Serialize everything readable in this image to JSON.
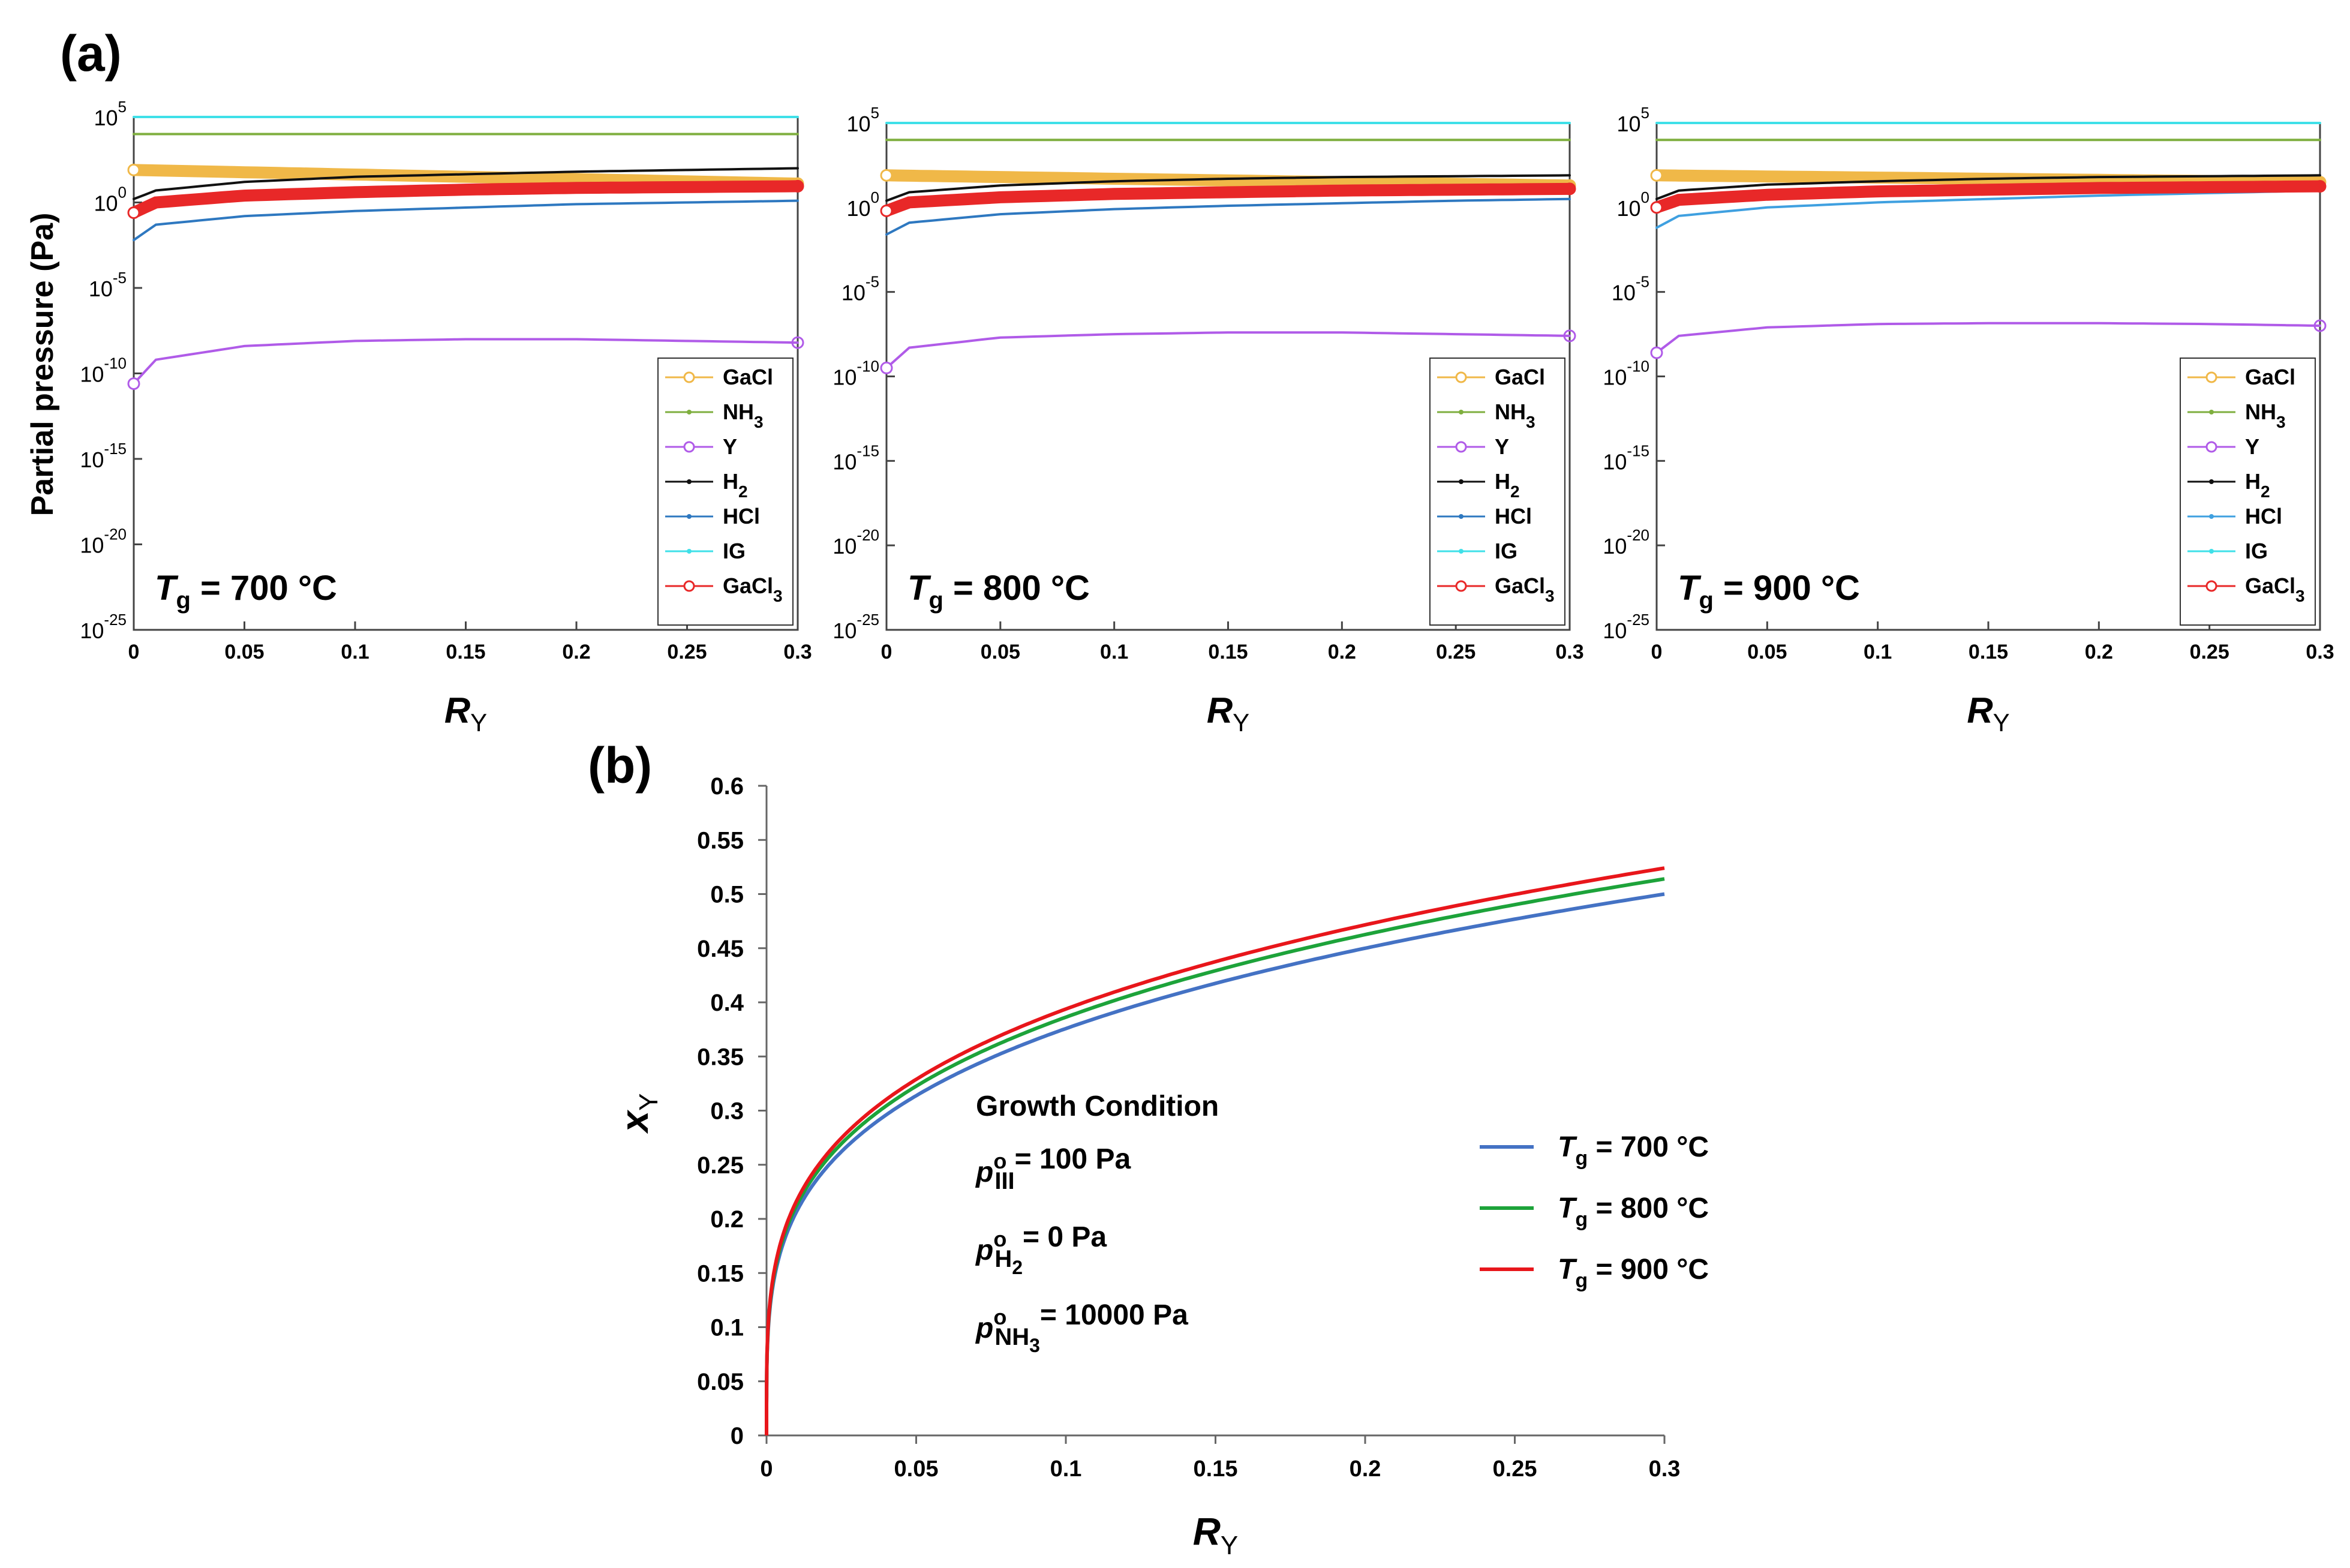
{
  "figure": {
    "panel_a_label": "(a)",
    "panel_b_label": "(b)"
  },
  "chart_data": [
    {
      "type": "line",
      "panel": "a-1",
      "title": "",
      "xlabel": "R_Y",
      "ylabel": "Partial pressure (Pa)",
      "xlim": [
        0,
        0.3
      ],
      "ylim_exp": [
        -25,
        5
      ],
      "yscale": "log",
      "x_ticks": [
        "0",
        "0.05",
        "0.1",
        "0.15",
        "0.2",
        "0.25",
        "0.3"
      ],
      "y_ticks": [
        [
          "10",
          "-25"
        ],
        [
          "10",
          "-20"
        ],
        [
          "10",
          "-15"
        ],
        [
          "10",
          "-10"
        ],
        [
          "10",
          "-5"
        ],
        [
          "10",
          "0"
        ],
        [
          "10",
          "5"
        ]
      ],
      "annotation": {
        "T": "T",
        "sub": "g",
        "value": " = 700 °C"
      },
      "legend_position": "bottom-right",
      "series": [
        {
          "name": "GaCl",
          "sub": "",
          "color": "#F0B848",
          "marker": "o",
          "thick": true,
          "x": [
            0,
            0.3
          ],
          "log10p": [
            1.9,
            1.1
          ]
        },
        {
          "name": "NH",
          "sub": "3",
          "color": "#7FAF3F",
          "marker": ".",
          "x": [
            0,
            0.3
          ],
          "log10p": [
            4.0,
            4.0
          ]
        },
        {
          "name": "Y",
          "sub": "",
          "color": "#B05BE8",
          "marker": "o",
          "x": [
            0,
            0.01,
            0.05,
            0.1,
            0.15,
            0.2,
            0.25,
            0.3
          ],
          "log10p": [
            -10.6,
            -9.2,
            -8.4,
            -8.1,
            -8.0,
            -8.0,
            -8.1,
            -8.2
          ]
        },
        {
          "name": "H",
          "sub": "2",
          "color": "#111111",
          "marker": ".",
          "x": [
            0,
            0.01,
            0.05,
            0.1,
            0.15,
            0.2,
            0.25,
            0.3
          ],
          "log10p": [
            0.2,
            0.7,
            1.2,
            1.5,
            1.65,
            1.8,
            1.9,
            2.0
          ]
        },
        {
          "name": "HCl",
          "sub": "",
          "color": "#2E78C0",
          "marker": ".",
          "x": [
            0,
            0.01,
            0.05,
            0.1,
            0.15,
            0.2,
            0.25,
            0.3
          ],
          "log10p": [
            -2.2,
            -1.3,
            -0.8,
            -0.5,
            -0.3,
            -0.1,
            0.0,
            0.1
          ]
        },
        {
          "name": "IG",
          "sub": "",
          "color": "#3FE0E8",
          "marker": ".",
          "x": [
            0,
            0.3
          ],
          "log10p": [
            5.0,
            5.0
          ]
        },
        {
          "name": "GaCl",
          "sub": "3",
          "color": "#E82828",
          "marker": "o",
          "thick": true,
          "x": [
            0,
            0.01,
            0.05,
            0.1,
            0.15,
            0.2,
            0.25,
            0.3
          ],
          "log10p": [
            -0.6,
            0.0,
            0.4,
            0.6,
            0.75,
            0.85,
            0.9,
            0.95
          ]
        }
      ]
    },
    {
      "type": "line",
      "panel": "a-2",
      "title": "",
      "xlabel": "R_Y",
      "ylabel": "",
      "xlim": [
        0,
        0.3
      ],
      "ylim_exp": [
        -25,
        5
      ],
      "yscale": "log",
      "x_ticks": [
        "0",
        "0.05",
        "0.1",
        "0.15",
        "0.2",
        "0.25",
        "0.3"
      ],
      "y_ticks": [
        [
          "10",
          "-25"
        ],
        [
          "10",
          "-20"
        ],
        [
          "10",
          "-15"
        ],
        [
          "10",
          "-10"
        ],
        [
          "10",
          "-5"
        ],
        [
          "10",
          "0"
        ],
        [
          "10",
          "5"
        ]
      ],
      "annotation": {
        "T": "T",
        "sub": "g",
        "value": " = 800 °C"
      },
      "legend_position": "bottom-right",
      "series": [
        {
          "name": "GaCl",
          "sub": "",
          "color": "#F0B848",
          "marker": "o",
          "thick": true,
          "x": [
            0,
            0.3
          ],
          "log10p": [
            1.9,
            1.3
          ]
        },
        {
          "name": "NH",
          "sub": "3",
          "color": "#7FAF3F",
          "marker": ".",
          "x": [
            0,
            0.3
          ],
          "log10p": [
            4.0,
            4.0
          ]
        },
        {
          "name": "Y",
          "sub": "",
          "color": "#B05BE8",
          "marker": "o",
          "x": [
            0,
            0.01,
            0.05,
            0.1,
            0.15,
            0.2,
            0.25,
            0.3
          ],
          "log10p": [
            -9.5,
            -8.3,
            -7.7,
            -7.5,
            -7.4,
            -7.4,
            -7.5,
            -7.6
          ]
        },
        {
          "name": "H",
          "sub": "2",
          "color": "#111111",
          "marker": ".",
          "x": [
            0,
            0.01,
            0.05,
            0.1,
            0.15,
            0.2,
            0.25,
            0.3
          ],
          "log10p": [
            0.4,
            0.9,
            1.3,
            1.55,
            1.7,
            1.8,
            1.85,
            1.9
          ]
        },
        {
          "name": "HCl",
          "sub": "",
          "color": "#2E78C0",
          "marker": ".",
          "x": [
            0,
            0.01,
            0.05,
            0.1,
            0.15,
            0.2,
            0.25,
            0.3
          ],
          "log10p": [
            -1.6,
            -0.9,
            -0.4,
            -0.1,
            0.1,
            0.25,
            0.4,
            0.5
          ]
        },
        {
          "name": "IG",
          "sub": "",
          "color": "#3FE0E8",
          "marker": ".",
          "x": [
            0,
            0.3
          ],
          "log10p": [
            5.0,
            5.0
          ]
        },
        {
          "name": "GaCl",
          "sub": "3",
          "color": "#E82828",
          "marker": "o",
          "thick": true,
          "x": [
            0,
            0.01,
            0.05,
            0.1,
            0.15,
            0.2,
            0.25,
            0.3
          ],
          "log10p": [
            -0.2,
            0.3,
            0.6,
            0.8,
            0.9,
            1.0,
            1.05,
            1.1
          ]
        }
      ]
    },
    {
      "type": "line",
      "panel": "a-3",
      "title": "",
      "xlabel": "R_Y",
      "ylabel": "",
      "xlim": [
        0,
        0.3
      ],
      "ylim_exp": [
        -25,
        5
      ],
      "yscale": "log",
      "x_ticks": [
        "0",
        "0.05",
        "0.1",
        "0.15",
        "0.2",
        "0.25",
        "0.3"
      ],
      "y_ticks": [
        [
          "10",
          "-25"
        ],
        [
          "10",
          "-20"
        ],
        [
          "10",
          "-15"
        ],
        [
          "10",
          "-10"
        ],
        [
          "10",
          "-5"
        ],
        [
          "10",
          "0"
        ],
        [
          "10",
          "5"
        ]
      ],
      "annotation": {
        "T": "T",
        "sub": "g",
        "value": " = 900 °C"
      },
      "legend_position": "bottom-right",
      "series": [
        {
          "name": "GaCl",
          "sub": "",
          "color": "#F0B848",
          "marker": "o",
          "thick": true,
          "x": [
            0,
            0.3
          ],
          "log10p": [
            1.9,
            1.5
          ]
        },
        {
          "name": "NH",
          "sub": "3",
          "color": "#7FAF3F",
          "marker": ".",
          "x": [
            0,
            0.3
          ],
          "log10p": [
            4.0,
            4.0
          ]
        },
        {
          "name": "Y",
          "sub": "",
          "color": "#B05BE8",
          "marker": "o",
          "x": [
            0,
            0.01,
            0.05,
            0.1,
            0.15,
            0.2,
            0.25,
            0.3
          ],
          "log10p": [
            -8.6,
            -7.6,
            -7.1,
            -6.9,
            -6.85,
            -6.85,
            -6.9,
            -7.0
          ]
        },
        {
          "name": "H",
          "sub": "2",
          "color": "#111111",
          "marker": ".",
          "x": [
            0,
            0.01,
            0.05,
            0.1,
            0.15,
            0.2,
            0.25,
            0.3
          ],
          "log10p": [
            0.5,
            1.0,
            1.35,
            1.55,
            1.7,
            1.8,
            1.85,
            1.9
          ]
        },
        {
          "name": "HCl",
          "sub": "",
          "color": "#3FA0E0",
          "marker": ".",
          "x": [
            0,
            0.01,
            0.05,
            0.1,
            0.15,
            0.2,
            0.25,
            0.3
          ],
          "log10p": [
            -1.2,
            -0.5,
            0.0,
            0.3,
            0.5,
            0.7,
            0.85,
            1.0
          ]
        },
        {
          "name": "IG",
          "sub": "",
          "color": "#3FE0E8",
          "marker": ".",
          "x": [
            0,
            0.3
          ],
          "log10p": [
            5.0,
            5.0
          ]
        },
        {
          "name": "GaCl",
          "sub": "3",
          "color": "#E82828",
          "marker": "o",
          "thick": true,
          "x": [
            0,
            0.01,
            0.05,
            0.1,
            0.15,
            0.2,
            0.25,
            0.3
          ],
          "log10p": [
            0.0,
            0.45,
            0.75,
            0.95,
            1.05,
            1.15,
            1.2,
            1.25
          ]
        }
      ]
    },
    {
      "type": "line",
      "panel": "b",
      "title": "",
      "xlabel": "R_Y",
      "ylabel": "x_Y",
      "xlim": [
        0,
        0.3
      ],
      "ylim": [
        0,
        0.6
      ],
      "x_ticks": [
        "0",
        "0.05",
        "0.1",
        "0.15",
        "0.2",
        "0.25",
        "0.3"
      ],
      "y_ticks": [
        "0",
        "0.05",
        "0.1",
        "0.15",
        "0.2",
        "0.25",
        "0.3",
        "0.35",
        "0.4",
        "0.45",
        "0.5",
        "0.55",
        "0.6"
      ],
      "legend_position": "right",
      "conditions": {
        "title": "Growth Condition",
        "lines": [
          {
            "p": "p",
            "sup": "o",
            "sub": "III",
            "value": "= 100 Pa"
          },
          {
            "p": "p",
            "sup": "o",
            "sub": "H2",
            "value": "= 0 Pa"
          },
          {
            "p": "p",
            "sup": "o",
            "sub": "NH3",
            "value": "= 10000 Pa"
          }
        ]
      },
      "series": [
        {
          "name": "T",
          "sub": "g",
          "value": " = 700 °C",
          "color": "#4472C4",
          "endpoint": 0.5
        },
        {
          "name": "T",
          "sub": "g",
          "value": " = 800 °C",
          "color": "#1DA33A",
          "endpoint": 0.514
        },
        {
          "name": "T",
          "sub": "g",
          "value": " = 900 °C",
          "color": "#E8161B",
          "endpoint": 0.524
        }
      ]
    }
  ]
}
